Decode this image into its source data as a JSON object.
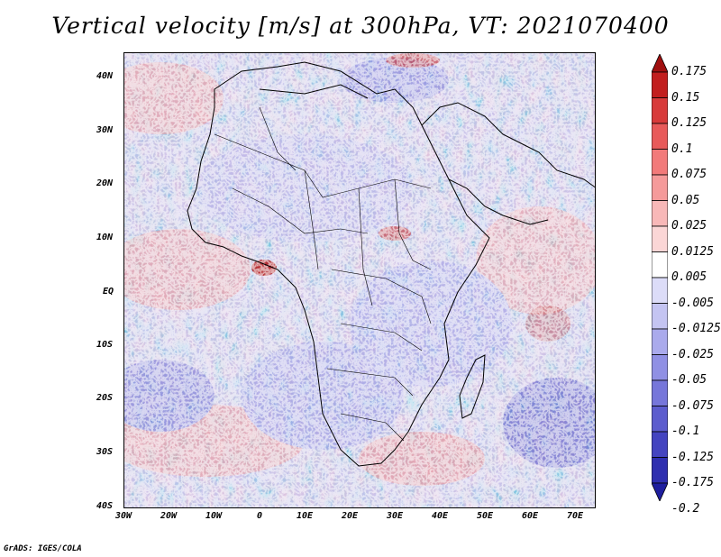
{
  "title": "Vertical velocity [m/s] at 300hPa, VT: 2021070400",
  "footer": "GrADS: IGES/COLA",
  "map": {
    "region": "Africa",
    "lat_labels": [
      "40N",
      "30N",
      "20N",
      "10N",
      "EQ",
      "10S",
      "20S",
      "30S",
      "40S"
    ],
    "lon_labels": [
      "30W",
      "20W",
      "10W",
      "0",
      "10E",
      "20E",
      "30E",
      "40E",
      "50E",
      "60E",
      "70E"
    ]
  },
  "colorbar": {
    "labels": [
      "0.175",
      "0.15",
      "0.125",
      "0.1",
      "0.075",
      "0.05",
      "0.025",
      "0.0125",
      "0.005",
      "-0.005",
      "-0.0125",
      "-0.025",
      "-0.05",
      "-0.075",
      "-0.1",
      "-0.125",
      "-0.175",
      "-0.2"
    ],
    "colors": [
      "#a01010",
      "#c21e1e",
      "#d83a3a",
      "#e85a5a",
      "#f27a7a",
      "#f59a9a",
      "#f8b8b8",
      "#fbd6d6",
      "#ffffff",
      "#dcdcf8",
      "#c4c4f2",
      "#aaaaec",
      "#9090e4",
      "#7676da",
      "#5c5cce",
      "#4444c0",
      "#2e2eb0",
      "#1e1e9e"
    ]
  }
}
